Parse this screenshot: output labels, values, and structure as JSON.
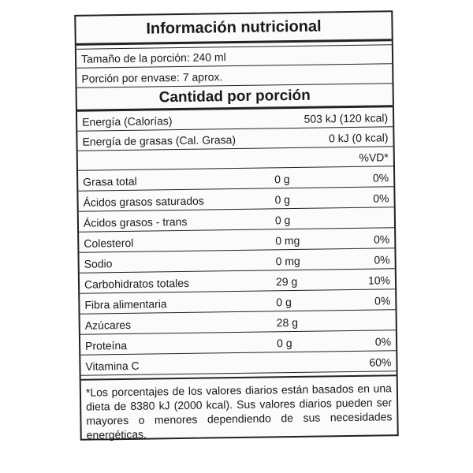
{
  "title": "Información nutricional",
  "serving_size": "Tamaño de la porción: 240 ml",
  "servings_per_container": "Porción por envase: 7 aprox.",
  "section_heading": "Cantidad por porción",
  "energy": {
    "label": "Energía (Calorías)",
    "value": "503 kJ (120 kcal)"
  },
  "fat_energy": {
    "label": "Energía de grasas (Cal. Grasa)",
    "value": "0 kJ (0 kcal)"
  },
  "vd_header": "%VD*",
  "nutrients": [
    {
      "name": "Grasa total",
      "amount": "0 g",
      "vd": "0%"
    },
    {
      "name": "Ácidos grasos saturados",
      "amount": "0 g",
      "vd": "0%"
    },
    {
      "name": "Ácidos grasos - trans",
      "amount": "0 g",
      "vd": ""
    },
    {
      "name": "Colesterol",
      "amount": "0 mg",
      "vd": "0%"
    },
    {
      "name": "Sodio",
      "amount": "0 mg",
      "vd": "0%"
    },
    {
      "name": "Carbohidratos totales",
      "amount": "29 g",
      "vd": "10%"
    },
    {
      "name": "Fibra alimentaria",
      "amount": "0 g",
      "vd": "0%"
    },
    {
      "name": "Azúcares",
      "amount": "28 g",
      "vd": ""
    },
    {
      "name": "Proteína",
      "amount": "0 g",
      "vd": "0%"
    },
    {
      "name": "Vitamina C",
      "amount": "",
      "vd": "60%"
    }
  ],
  "footnote": "*Los porcentajes de los valores diarios están basados en una dieta de 8380 kJ (2000 kcal). Sus valores diarios pueden ser mayores o menores dependiendo de sus necesidades energéticas."
}
